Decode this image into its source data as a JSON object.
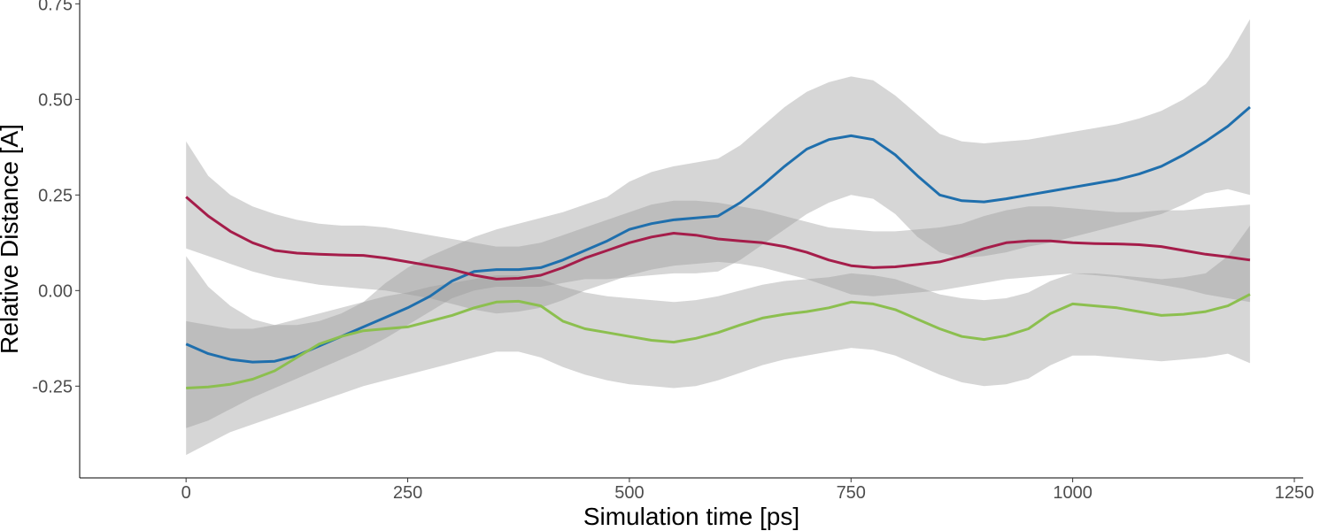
{
  "chart_data": {
    "type": "line",
    "title": "",
    "xlabel": "Simulation time [ps]",
    "ylabel": "Relative Distance [A]",
    "xlim": [
      -120,
      1260
    ],
    "ylim": [
      -0.49,
      0.76
    ],
    "x_ticks": [
      0,
      250,
      500,
      750,
      1000,
      1250
    ],
    "x_tick_labels": [
      "0",
      "250",
      "500",
      "750",
      "1000",
      "1250"
    ],
    "y_ticks": [
      -0.25,
      0.0,
      0.25,
      0.5,
      0.75
    ],
    "y_tick_labels": [
      "-0.25",
      "0.00",
      "0.25",
      "0.50",
      "0.75"
    ],
    "grid": false,
    "legend": "none",
    "band_color": "#999999",
    "series": [
      {
        "color": "#1f6fad",
        "x": [
          0,
          25,
          50,
          75,
          100,
          125,
          150,
          175,
          200,
          225,
          250,
          275,
          300,
          325,
          350,
          375,
          400,
          425,
          450,
          475,
          500,
          525,
          550,
          575,
          600,
          625,
          650,
          675,
          700,
          725,
          750,
          775,
          800,
          825,
          850,
          875,
          900,
          925,
          950,
          975,
          1000,
          1025,
          1050,
          1075,
          1100,
          1125,
          1150,
          1175,
          1200
        ],
        "y": [
          -0.14,
          -0.165,
          -0.18,
          -0.187,
          -0.185,
          -0.17,
          -0.145,
          -0.12,
          -0.095,
          -0.07,
          -0.045,
          -0.015,
          0.025,
          0.05,
          0.055,
          0.055,
          0.06,
          0.08,
          0.105,
          0.13,
          0.16,
          0.175,
          0.185,
          0.19,
          0.195,
          0.23,
          0.275,
          0.325,
          0.37,
          0.395,
          0.405,
          0.395,
          0.355,
          0.3,
          0.25,
          0.235,
          0.232,
          0.24,
          0.25,
          0.26,
          0.27,
          0.28,
          0.29,
          0.305,
          0.325,
          0.355,
          0.39,
          0.43,
          0.48
        ],
        "lower": [
          -0.36,
          -0.34,
          -0.31,
          -0.28,
          -0.255,
          -0.23,
          -0.205,
          -0.18,
          -0.155,
          -0.125,
          -0.09,
          -0.055,
          -0.02,
          0.0,
          0.01,
          0.01,
          0.01,
          0.02,
          0.03,
          0.03,
          0.035,
          0.04,
          0.045,
          0.045,
          0.05,
          0.08,
          0.12,
          0.16,
          0.2,
          0.23,
          0.25,
          0.24,
          0.2,
          0.14,
          0.1,
          0.085,
          0.09,
          0.1,
          0.115,
          0.125,
          0.14,
          0.155,
          0.17,
          0.185,
          0.2,
          0.225,
          0.255,
          0.265,
          0.25
        ],
        "upper": [
          0.09,
          0.01,
          -0.04,
          -0.075,
          -0.09,
          -0.09,
          -0.08,
          -0.06,
          -0.03,
          0.02,
          0.06,
          0.09,
          0.115,
          0.14,
          0.16,
          0.175,
          0.19,
          0.205,
          0.225,
          0.245,
          0.285,
          0.31,
          0.325,
          0.335,
          0.345,
          0.38,
          0.43,
          0.48,
          0.52,
          0.545,
          0.56,
          0.55,
          0.51,
          0.46,
          0.41,
          0.39,
          0.385,
          0.39,
          0.395,
          0.405,
          0.415,
          0.425,
          0.435,
          0.45,
          0.47,
          0.5,
          0.54,
          0.61,
          0.71
        ]
      },
      {
        "color": "#a51d4a",
        "x": [
          0,
          25,
          50,
          75,
          100,
          125,
          150,
          175,
          200,
          225,
          250,
          275,
          300,
          325,
          350,
          375,
          400,
          425,
          450,
          475,
          500,
          525,
          550,
          575,
          600,
          625,
          650,
          675,
          700,
          725,
          750,
          775,
          800,
          825,
          850,
          875,
          900,
          925,
          950,
          975,
          1000,
          1025,
          1050,
          1075,
          1100,
          1125,
          1150,
          1175,
          1200
        ],
        "y": [
          0.245,
          0.195,
          0.155,
          0.125,
          0.105,
          0.098,
          0.095,
          0.093,
          0.092,
          0.085,
          0.075,
          0.065,
          0.055,
          0.04,
          0.03,
          0.032,
          0.04,
          0.06,
          0.085,
          0.105,
          0.125,
          0.14,
          0.15,
          0.145,
          0.135,
          0.13,
          0.125,
          0.115,
          0.1,
          0.08,
          0.065,
          0.06,
          0.062,
          0.068,
          0.075,
          0.09,
          0.11,
          0.125,
          0.13,
          0.13,
          0.125,
          0.123,
          0.122,
          0.12,
          0.115,
          0.105,
          0.095,
          0.088,
          0.08
        ],
        "lower": [
          0.11,
          0.09,
          0.07,
          0.05,
          0.035,
          0.025,
          0.015,
          0.01,
          0.005,
          0.0,
          -0.01,
          -0.02,
          -0.035,
          -0.05,
          -0.06,
          -0.055,
          -0.045,
          -0.025,
          0.0,
          0.02,
          0.04,
          0.055,
          0.065,
          0.07,
          0.075,
          0.07,
          0.06,
          0.045,
          0.03,
          0.01,
          -0.01,
          -0.015,
          -0.01,
          -0.005,
          0.0,
          0.01,
          0.02,
          0.03,
          0.035,
          0.04,
          0.045,
          0.04,
          0.035,
          0.025,
          0.015,
          0.005,
          -0.01,
          -0.02,
          -0.03
        ],
        "upper": [
          0.39,
          0.3,
          0.25,
          0.22,
          0.2,
          0.185,
          0.175,
          0.17,
          0.17,
          0.165,
          0.155,
          0.145,
          0.135,
          0.125,
          0.115,
          0.115,
          0.125,
          0.145,
          0.165,
          0.185,
          0.205,
          0.225,
          0.235,
          0.235,
          0.23,
          0.22,
          0.21,
          0.195,
          0.18,
          0.165,
          0.16,
          0.155,
          0.155,
          0.16,
          0.165,
          0.175,
          0.195,
          0.21,
          0.22,
          0.22,
          0.215,
          0.21,
          0.205,
          0.205,
          0.21,
          0.21,
          0.215,
          0.22,
          0.225
        ]
      },
      {
        "color": "#8cbf4f",
        "x": [
          0,
          25,
          50,
          75,
          100,
          125,
          150,
          175,
          200,
          225,
          250,
          275,
          300,
          325,
          350,
          375,
          400,
          425,
          450,
          475,
          500,
          525,
          550,
          575,
          600,
          625,
          650,
          675,
          700,
          725,
          750,
          775,
          800,
          825,
          850,
          875,
          900,
          925,
          950,
          975,
          1000,
          1025,
          1050,
          1075,
          1100,
          1125,
          1150,
          1175,
          1200
        ],
        "y": [
          -0.255,
          -0.252,
          -0.245,
          -0.232,
          -0.21,
          -0.175,
          -0.14,
          -0.12,
          -0.105,
          -0.1,
          -0.095,
          -0.08,
          -0.065,
          -0.045,
          -0.03,
          -0.028,
          -0.04,
          -0.08,
          -0.1,
          -0.11,
          -0.12,
          -0.13,
          -0.135,
          -0.125,
          -0.11,
          -0.09,
          -0.072,
          -0.062,
          -0.055,
          -0.045,
          -0.03,
          -0.035,
          -0.05,
          -0.075,
          -0.1,
          -0.12,
          -0.128,
          -0.118,
          -0.1,
          -0.06,
          -0.035,
          -0.04,
          -0.045,
          -0.055,
          -0.065,
          -0.062,
          -0.055,
          -0.04,
          -0.01
        ],
        "lower": [
          -0.43,
          -0.4,
          -0.37,
          -0.35,
          -0.33,
          -0.31,
          -0.29,
          -0.27,
          -0.25,
          -0.235,
          -0.22,
          -0.205,
          -0.19,
          -0.175,
          -0.16,
          -0.16,
          -0.175,
          -0.2,
          -0.22,
          -0.235,
          -0.245,
          -0.25,
          -0.255,
          -0.25,
          -0.235,
          -0.215,
          -0.195,
          -0.18,
          -0.17,
          -0.16,
          -0.15,
          -0.155,
          -0.17,
          -0.195,
          -0.22,
          -0.24,
          -0.25,
          -0.245,
          -0.23,
          -0.195,
          -0.17,
          -0.17,
          -0.175,
          -0.18,
          -0.185,
          -0.18,
          -0.175,
          -0.165,
          -0.19
        ],
        "upper": [
          -0.08,
          -0.09,
          -0.1,
          -0.1,
          -0.09,
          -0.075,
          -0.06,
          -0.045,
          -0.03,
          -0.015,
          -0.005,
          0.01,
          0.02,
          0.03,
          0.04,
          0.04,
          0.03,
          0.01,
          -0.005,
          -0.015,
          -0.02,
          -0.025,
          -0.03,
          -0.025,
          -0.015,
          0.0,
          0.015,
          0.025,
          0.03,
          0.035,
          0.045,
          0.04,
          0.03,
          0.01,
          -0.01,
          -0.02,
          -0.025,
          -0.02,
          -0.005,
          0.025,
          0.045,
          0.045,
          0.04,
          0.035,
          0.03,
          0.035,
          0.045,
          0.09,
          0.17
        ]
      }
    ]
  }
}
